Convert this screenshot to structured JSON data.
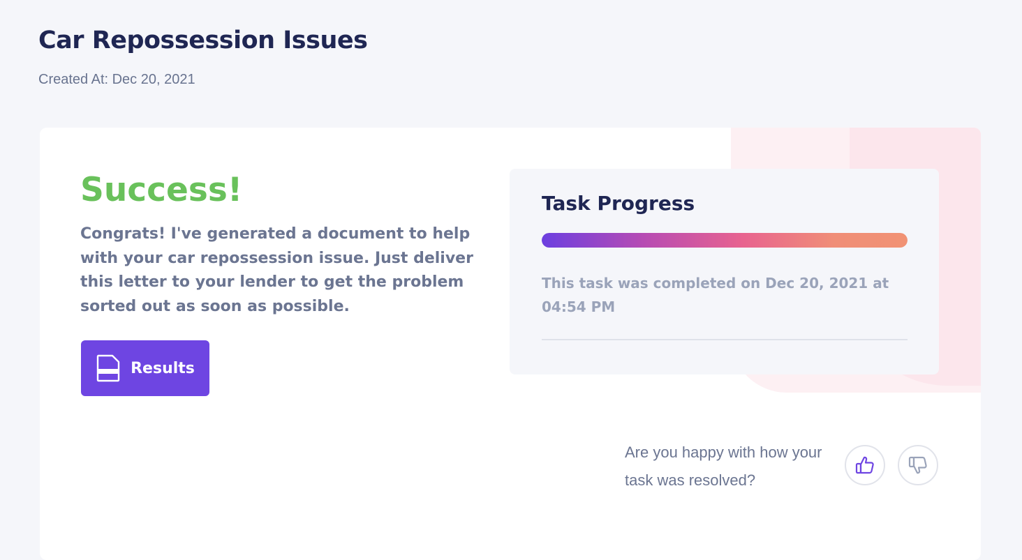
{
  "page": {
    "title": "Car Repossession Issues",
    "created_at": "Created At: Dec 20, 2021"
  },
  "success": {
    "title": "Success!",
    "message": "Congrats! I've generated a document to help with your car repossession issue. Just deliver this letter to your lender to get the problem sorted out as soon as possible.",
    "results_button": {
      "label": "Results",
      "icon": "document-icon"
    }
  },
  "progress": {
    "title": "Task Progress",
    "percent": 100,
    "status_text": "This task was completed on Dec 20, 2021 at 04:54 PM"
  },
  "feedback": {
    "question": "Are you happy with how your task was resolved?",
    "thumbs_up_icon": "thumbs-up-icon",
    "thumbs_down_icon": "thumbs-down-icon"
  },
  "colors": {
    "title": "#1f2653",
    "success": "#69c15b",
    "accent": "#6e45e2",
    "muted_text": "#6b7591",
    "progress_gradient_start": "#6c3fe0",
    "progress_gradient_end": "#f19274"
  }
}
